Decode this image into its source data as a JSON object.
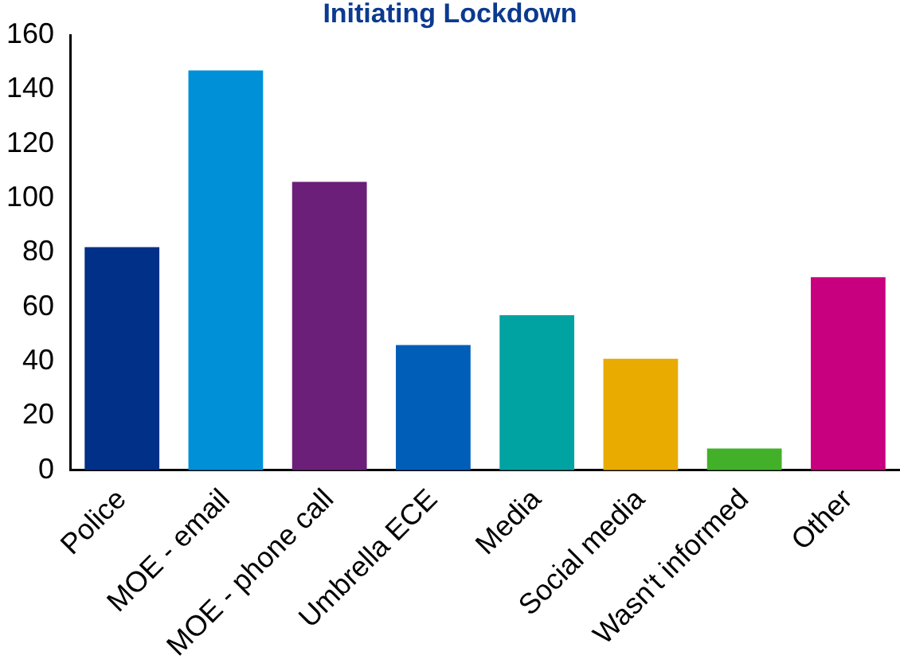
{
  "chart_data": {
    "type": "bar",
    "title": "Initiating Lockdown",
    "categories": [
      "Police",
      "MOE - email",
      "MOE - phone call",
      "Umbrella ECE",
      "Media",
      "Social media",
      "Wasn't informed",
      "Other"
    ],
    "values": [
      82,
      147,
      106,
      46,
      57,
      41,
      8,
      71
    ],
    "colors": [
      "#003087",
      "#0090d8",
      "#6b1f78",
      "#005eb8",
      "#00a3a1",
      "#eaab00",
      "#43b02a",
      "#c8007f"
    ],
    "ylim": [
      0,
      160
    ],
    "yticks": [
      0,
      20,
      40,
      60,
      80,
      100,
      120,
      140,
      160
    ],
    "grid": false,
    "legend": false
  }
}
